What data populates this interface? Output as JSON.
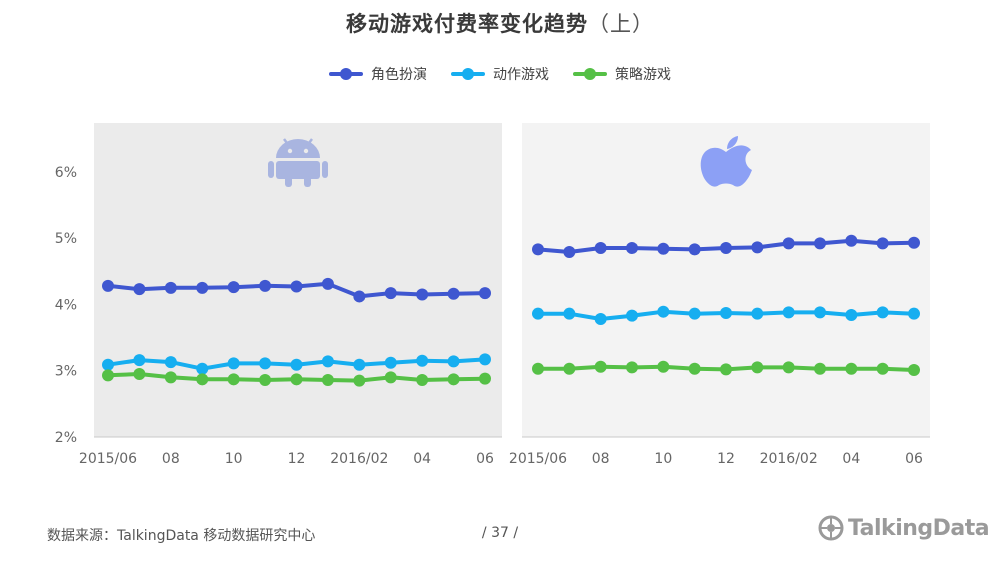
{
  "title": "移动游戏付费率变化趋势",
  "title_suffix": "（上）",
  "footer": {
    "source": "数据来源：TalkingData  移动数据研究中心",
    "page": "/   37   /",
    "brand": "TalkingData"
  },
  "colors": {
    "role_play": "#3f57d0",
    "action": "#16aef0",
    "strategy": "#55c046",
    "panel_android": "#ebebeb",
    "panel_ios": "#f3f3f3",
    "android_icon": "#a9b5e0",
    "apple_icon": "#8ca0f5"
  },
  "chart_data": [
    {
      "type": "line",
      "platform": "Android",
      "platform_icon": "android-icon",
      "x": [
        "2015/06",
        "2015/07",
        "2015/08",
        "2015/09",
        "2015/10",
        "2015/11",
        "2015/12",
        "2016/01",
        "2016/02",
        "2016/03",
        "2016/04",
        "2016/05",
        "2016/06"
      ],
      "x_tick_labels": [
        "2015/06",
        "",
        "08",
        "",
        "10",
        "",
        "12",
        "",
        "2016/02",
        "",
        "04",
        "",
        "06"
      ],
      "ylim": [
        2,
        6.5
      ],
      "y_ticks": [
        "2%",
        "3%",
        "4%",
        "5%",
        "6%"
      ],
      "y_tick_values": [
        2,
        3,
        4,
        5,
        6
      ],
      "grid": false,
      "legend": "top-center",
      "series": [
        {
          "name": "角色扮演",
          "color": "#3f57d0",
          "values": [
            4.28,
            4.23,
            4.25,
            4.25,
            4.26,
            4.28,
            4.27,
            4.31,
            4.12,
            4.17,
            4.15,
            4.16,
            4.17
          ]
        },
        {
          "name": "动作游戏",
          "color": "#16aef0",
          "values": [
            3.09,
            3.16,
            3.13,
            3.03,
            3.11,
            3.11,
            3.09,
            3.14,
            3.09,
            3.12,
            3.15,
            3.14,
            3.17
          ]
        },
        {
          "name": "策略游戏",
          "color": "#55c046",
          "values": [
            2.93,
            2.95,
            2.9,
            2.87,
            2.87,
            2.86,
            2.87,
            2.86,
            2.85,
            2.9,
            2.86,
            2.87,
            2.88
          ]
        }
      ]
    },
    {
      "type": "line",
      "platform": "iOS",
      "platform_icon": "apple-icon",
      "x": [
        "2015/06",
        "2015/07",
        "2015/08",
        "2015/09",
        "2015/10",
        "2015/11",
        "2015/12",
        "2016/01",
        "2016/02",
        "2016/03",
        "2016/04",
        "2016/05",
        "2016/06"
      ],
      "x_tick_labels": [
        "2015/06",
        "",
        "08",
        "",
        "10",
        "",
        "12",
        "",
        "2016/02",
        "",
        "04",
        "",
        "06"
      ],
      "ylim": [
        2,
        6.5
      ],
      "grid": false,
      "series": [
        {
          "name": "角色扮演",
          "color": "#3f57d0",
          "values": [
            4.83,
            4.79,
            4.85,
            4.85,
            4.84,
            4.83,
            4.85,
            4.86,
            4.92,
            4.92,
            4.96,
            4.92,
            4.93
          ]
        },
        {
          "name": "动作游戏",
          "color": "#16aef0",
          "values": [
            3.86,
            3.86,
            3.78,
            3.83,
            3.89,
            3.86,
            3.87,
            3.86,
            3.88,
            3.88,
            3.84,
            3.88,
            3.86
          ]
        },
        {
          "name": "策略游戏",
          "color": "#55c046",
          "values": [
            3.03,
            3.03,
            3.06,
            3.05,
            3.06,
            3.03,
            3.02,
            3.05,
            3.05,
            3.03,
            3.03,
            3.03,
            3.01
          ]
        }
      ]
    }
  ]
}
